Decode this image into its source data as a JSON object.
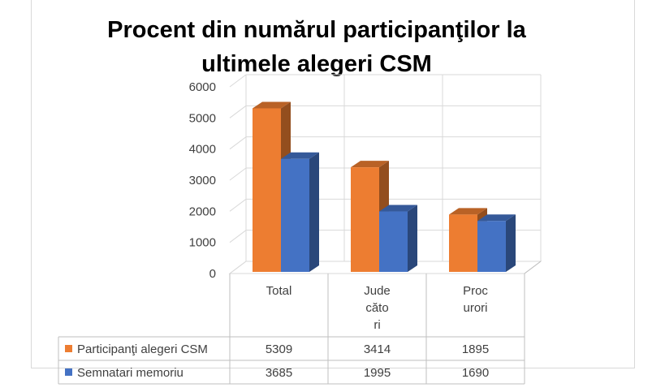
{
  "chart_data": {
    "type": "bar",
    "title": "Procent din numărul participanţilor la\nultimele alegeri CSM",
    "categories": [
      [
        "Total"
      ],
      [
        "Jude",
        "căto",
        "ri"
      ],
      [
        "Proc",
        "urori"
      ]
    ],
    "series": [
      {
        "name": "Participanţi alegeri CSM",
        "color": "#ed7d31",
        "values": [
          5309,
          3414,
          1895
        ]
      },
      {
        "name": "Semnatari memoriu",
        "color": "#4472c4",
        "values": [
          3685,
          1995,
          1690
        ]
      }
    ],
    "ylim": [
      0,
      6000
    ],
    "yticks": [
      0,
      1000,
      2000,
      3000,
      4000,
      5000,
      6000
    ],
    "grid": true,
    "legend": "data-table"
  }
}
